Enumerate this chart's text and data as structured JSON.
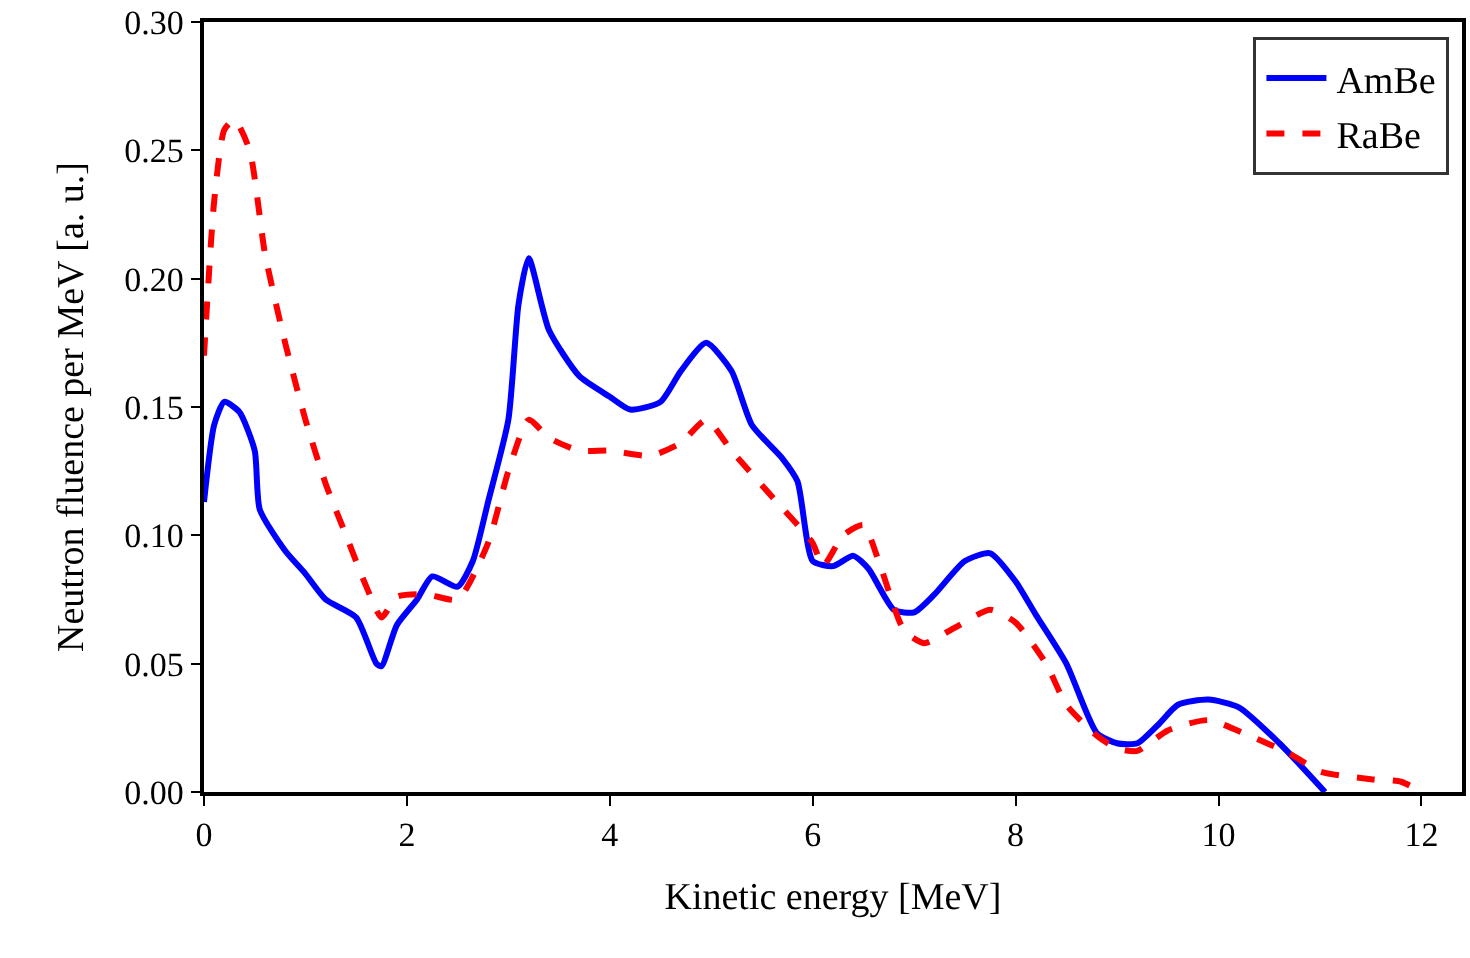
{
  "chart_data": {
    "type": "line",
    "xlabel": "Kinetic energy [MeV]",
    "ylabel": "Neutron fluence per MeV [a. u.]",
    "xlim": [
      0,
      12.4
    ],
    "xticks": [
      0,
      2,
      4,
      6,
      8,
      10,
      12
    ],
    "ylim": [
      0,
      0.3
    ],
    "yticks": [
      {
        "value": 0,
        "label": "0.00"
      },
      {
        "value": 0.05,
        "label": "0.05"
      },
      {
        "value": 0.1,
        "label": "0.10"
      },
      {
        "value": 0.15,
        "label": "0.15"
      },
      {
        "value": 0.2,
        "label": "0.20"
      },
      {
        "value": 0.25,
        "label": "0.25"
      },
      {
        "value": 0.3,
        "label": "0.30"
      }
    ],
    "legend": "top right",
    "series": [
      {
        "name": "AmBe",
        "color": "#0000ff",
        "line_style": "solid",
        "x": [
          0,
          0.1,
          0.2,
          0.35,
          0.5,
          0.55,
          0.8,
          1.0,
          1.2,
          1.5,
          1.7,
          1.75,
          1.9,
          2.1,
          2.25,
          2.5,
          2.65,
          2.8,
          3.0,
          3.1,
          3.2,
          3.4,
          3.7,
          4.0,
          4.2,
          4.5,
          4.7,
          4.95,
          5.2,
          5.4,
          5.7,
          5.85,
          6.0,
          6.2,
          6.4,
          6.55,
          6.8,
          7.0,
          7.2,
          7.5,
          7.75,
          8.0,
          8.2,
          8.5,
          8.8,
          9.0,
          9.2,
          9.4,
          9.6,
          9.9,
          10.2,
          10.6,
          11.05
        ],
        "values": [
          0.113,
          0.143,
          0.152,
          0.148,
          0.133,
          0.11,
          0.094,
          0.085,
          0.075,
          0.068,
          0.05,
          0.049,
          0.065,
          0.075,
          0.084,
          0.08,
          0.09,
          0.113,
          0.145,
          0.19,
          0.208,
          0.18,
          0.162,
          0.154,
          0.149,
          0.152,
          0.164,
          0.175,
          0.164,
          0.143,
          0.13,
          0.121,
          0.09,
          0.088,
          0.092,
          0.087,
          0.071,
          0.07,
          0.077,
          0.09,
          0.093,
          0.082,
          0.069,
          0.05,
          0.023,
          0.019,
          0.019,
          0.026,
          0.034,
          0.036,
          0.033,
          0.019,
          0
        ]
      },
      {
        "name": "RaBe",
        "color": "#ff0000",
        "line_style": "dashed",
        "x": [
          0,
          0.1,
          0.2,
          0.3,
          0.45,
          0.6,
          0.8,
          1.0,
          1.2,
          1.4,
          1.6,
          1.75,
          1.9,
          2.2,
          2.5,
          2.8,
          3.0,
          3.2,
          3.4,
          3.7,
          4.0,
          4.4,
          4.7,
          4.95,
          5.2,
          5.6,
          6.0,
          6.1,
          6.3,
          6.5,
          6.65,
          6.9,
          7.1,
          7.4,
          7.75,
          8.0,
          8.3,
          8.5,
          8.8,
          9.0,
          9.2,
          9.5,
          9.9,
          10.3,
          10.7,
          11.0,
          11.5,
          11.8,
          12.0
        ],
        "values": [
          0.17,
          0.23,
          0.258,
          0.262,
          0.25,
          0.21,
          0.175,
          0.145,
          0.12,
          0.1,
          0.08,
          0.068,
          0.076,
          0.077,
          0.075,
          0.097,
          0.125,
          0.145,
          0.138,
          0.133,
          0.133,
          0.131,
          0.136,
          0.145,
          0.133,
          0.115,
          0.097,
          0.088,
          0.1,
          0.104,
          0.09,
          0.063,
          0.058,
          0.064,
          0.071,
          0.066,
          0.05,
          0.034,
          0.022,
          0.017,
          0.016,
          0.024,
          0.028,
          0.022,
          0.015,
          0.008,
          0.005,
          0.004,
          0
        ]
      }
    ]
  }
}
